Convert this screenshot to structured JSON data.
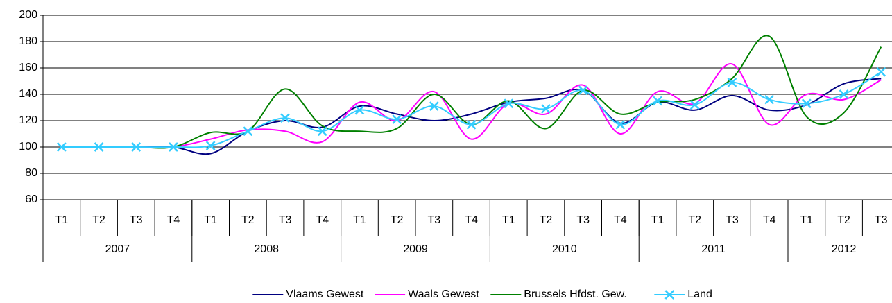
{
  "chart_data": {
    "type": "line",
    "smooth": true,
    "categories": [
      "T1",
      "T2",
      "T3",
      "T4",
      "T1",
      "T2",
      "T3",
      "T4",
      "T1",
      "T2",
      "T3",
      "T4",
      "T1",
      "T2",
      "T3",
      "T4",
      "T1",
      "T2",
      "T3",
      "T4",
      "T1",
      "T2",
      "T3"
    ],
    "x_groups": [
      {
        "label": "2007",
        "count": 4
      },
      {
        "label": "2008",
        "count": 4
      },
      {
        "label": "2009",
        "count": 4
      },
      {
        "label": "2010",
        "count": 4
      },
      {
        "label": "2011",
        "count": 4
      },
      {
        "label": "2012",
        "count": 3
      }
    ],
    "series": [
      {
        "name": "Vlaams Gewest",
        "color": "#000080",
        "values": [
          100,
          100,
          100,
          100,
          95,
          112,
          120,
          115,
          131,
          125,
          120,
          125,
          134,
          137,
          143,
          118,
          134,
          128,
          139,
          128,
          132,
          148,
          152
        ]
      },
      {
        "name": "Waals Gewest",
        "color": "#ff00ff",
        "values": [
          100,
          100,
          100,
          100,
          106,
          113,
          112,
          104,
          134,
          120,
          142,
          106,
          133,
          125,
          147,
          110,
          142,
          133,
          163,
          117,
          140,
          136,
          151
        ]
      },
      {
        "name": "Brussels Hfdst. Gew.",
        "color": "#008000",
        "values": [
          100,
          100,
          100,
          100,
          111,
          112,
          144,
          116,
          112,
          114,
          140,
          117,
          135,
          114,
          143,
          125,
          134,
          136,
          152,
          184,
          123,
          126,
          176
        ]
      },
      {
        "name": "Land",
        "color": "#33ccff",
        "marker": "x",
        "values": [
          100,
          100,
          100,
          100,
          101,
          112,
          122,
          112,
          128,
          121,
          131,
          117,
          133,
          129,
          143,
          117,
          135,
          132,
          149,
          136,
          133,
          140,
          157
        ]
      }
    ],
    "ylim": [
      60,
      200
    ],
    "yticks": [
      60,
      80,
      100,
      120,
      140,
      160,
      180,
      200
    ],
    "grid": true,
    "legend": "bottom"
  }
}
